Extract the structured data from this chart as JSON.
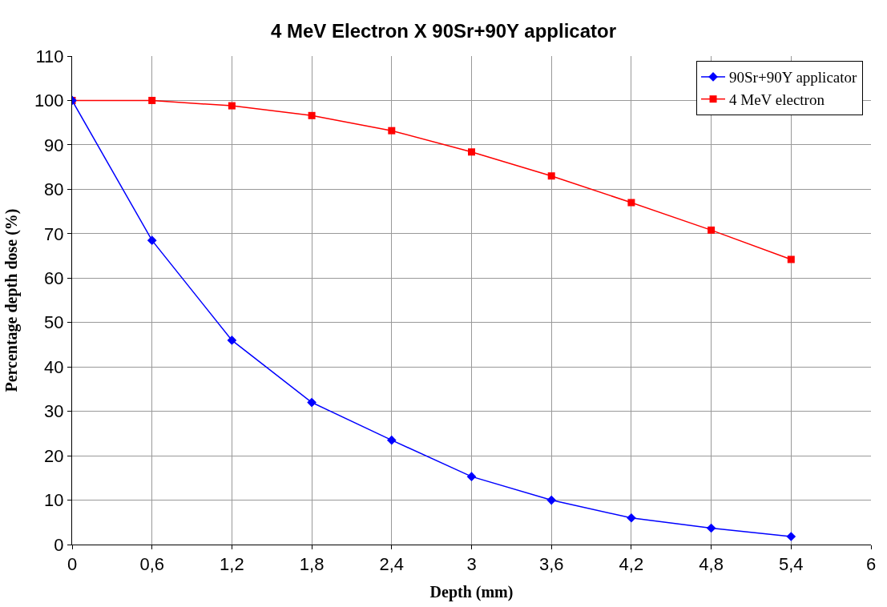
{
  "chart_data": {
    "type": "line",
    "title": "4 MeV Electron X 90Sr+90Y applicator",
    "xlabel": "Depth (mm)",
    "ylabel": "Percentage depth dose (%)",
    "x": [
      0,
      0.6,
      1.2,
      1.8,
      2.4,
      3,
      3.6,
      4.2,
      4.8,
      5.4
    ],
    "series": [
      {
        "name": "90Sr+90Y applicator",
        "color": "#0000ff",
        "marker": "diamond",
        "values": [
          100,
          68.5,
          46,
          32,
          23.5,
          15.3,
          10,
          6,
          3.7,
          1.8
        ]
      },
      {
        "name": "4 MeV electron",
        "color": "#ff0000",
        "marker": "square",
        "values": [
          100,
          100,
          98.8,
          96.6,
          93.2,
          88.4,
          83,
          77,
          70.8,
          64.2
        ]
      }
    ],
    "xlim": [
      0,
      6
    ],
    "xticks": [
      0,
      {
        "value": 0.6,
        "label": "0,6"
      },
      {
        "value": 1.2,
        "label": "1,2"
      },
      {
        "value": 1.8,
        "label": "1,8"
      },
      {
        "value": 2.4,
        "label": "2,4"
      },
      3,
      {
        "value": 3.6,
        "label": "3,6"
      },
      {
        "value": 4.2,
        "label": "4,2"
      },
      {
        "value": 4.8,
        "label": "4,8"
      },
      {
        "value": 5.4,
        "label": "5,4"
      },
      6
    ],
    "ylim": [
      0,
      110
    ],
    "yticks": [
      0,
      10,
      20,
      30,
      40,
      50,
      60,
      70,
      80,
      90,
      100,
      110
    ],
    "grid": true,
    "legend": "top right"
  }
}
